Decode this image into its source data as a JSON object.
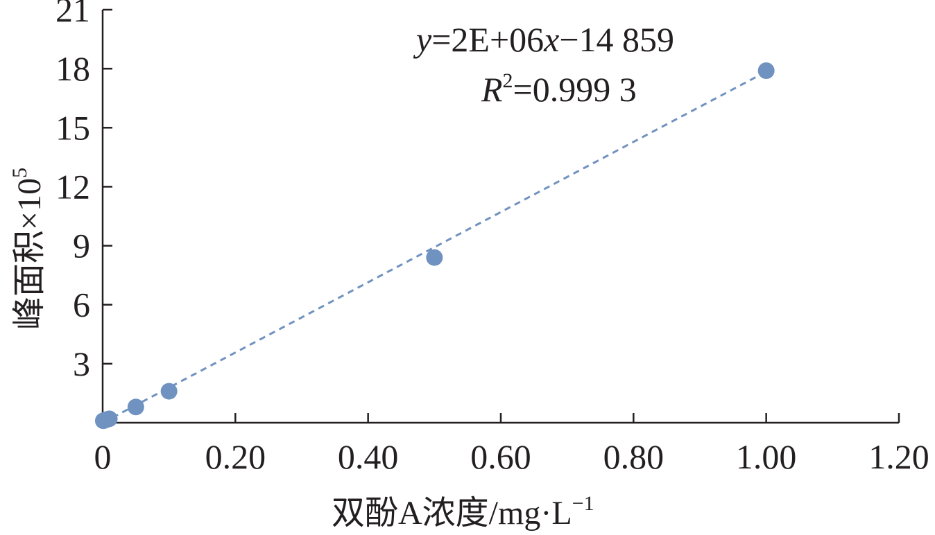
{
  "chart_data": {
    "type": "scatter",
    "xlabel_main": "双酚A浓度/mg·L",
    "xlabel_sup": "−1",
    "ylabel_main": "峰面积×10",
    "ylabel_sup": "5",
    "xlim": [
      0,
      1.2
    ],
    "ylim": [
      0,
      21
    ],
    "x_ticks": [
      {
        "value": 0,
        "label": "0"
      },
      {
        "value": 0.2,
        "label": "0.20"
      },
      {
        "value": 0.4,
        "label": "0.40"
      },
      {
        "value": 0.6,
        "label": "0.60"
      },
      {
        "value": 0.8,
        "label": "0.80"
      },
      {
        "value": 1.0,
        "label": "1.00"
      },
      {
        "value": 1.2,
        "label": "1.20"
      }
    ],
    "y_ticks": [
      {
        "value": 3,
        "label": "3"
      },
      {
        "value": 6,
        "label": "6"
      },
      {
        "value": 9,
        "label": "9"
      },
      {
        "value": 12,
        "label": "12"
      },
      {
        "value": 15,
        "label": "15"
      },
      {
        "value": 18,
        "label": "18"
      },
      {
        "value": 21,
        "label": "21"
      }
    ],
    "series": [
      {
        "points": [
          {
            "x": 0.001,
            "y": 0.1
          },
          {
            "x": 0.005,
            "y": 0.15
          },
          {
            "x": 0.01,
            "y": 0.2
          },
          {
            "x": 0.05,
            "y": 0.8
          },
          {
            "x": 0.1,
            "y": 1.6
          },
          {
            "x": 0.5,
            "y": 8.4
          },
          {
            "x": 1.0,
            "y": 17.9
          }
        ],
        "color": "#7092c0"
      }
    ],
    "trendline": {
      "from": {
        "x": 0.0,
        "y": 0.0
      },
      "to": {
        "x": 1.0,
        "y": 17.85
      },
      "color": "#7092c0",
      "style": "dashed"
    },
    "equation": {
      "y_var": "y",
      "equals_part": "=2E+06",
      "x_var": "x",
      "rest": "−14 859"
    },
    "r_squared": {
      "var": "R",
      "sup": "2",
      "rest": "=0.999 3"
    },
    "grid": false
  }
}
